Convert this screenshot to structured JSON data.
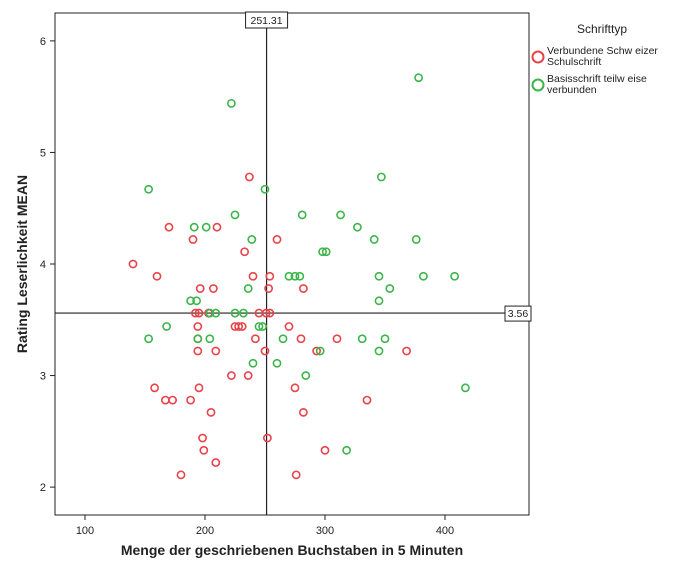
{
  "chart_data": {
    "type": "scatter",
    "xlabel": "Menge der geschriebenen Buchstaben in 5 Minuten",
    "ylabel": "Rating Leserlichkeit MEAN",
    "xlim": [
      75,
      470
    ],
    "ylim": [
      1.75,
      6.25
    ],
    "xticks": [
      100,
      200,
      300,
      400
    ],
    "yticks": [
      2,
      3,
      4,
      5,
      6
    ],
    "grid": false,
    "legend": {
      "title": "Schrifttyp",
      "placement": "right",
      "entries": [
        {
          "lines": [
            "Verbundene Schw eizer",
            "Schulschrift"
          ],
          "color": "#e8434a"
        },
        {
          "lines": [
            "Basisschrift teilw eise",
            "verbunden"
          ],
          "color": "#3cb54a"
        }
      ]
    },
    "reference_lines": {
      "x": {
        "value": 251.31,
        "label": "251.31"
      },
      "y": {
        "value": 3.56,
        "label": "3.56"
      }
    },
    "series": [
      {
        "name": "Verbundene Schw eizer Schulschrift",
        "color": "#e8434a",
        "points": [
          [
            140,
            4.0
          ],
          [
            160,
            3.89
          ],
          [
            158,
            2.89
          ],
          [
            167,
            2.78
          ],
          [
            173,
            2.78
          ],
          [
            170,
            4.33
          ],
          [
            180,
            2.11
          ],
          [
            188,
            2.78
          ],
          [
            190,
            4.22
          ],
          [
            192,
            3.56
          ],
          [
            194,
            3.44
          ],
          [
            194,
            3.33
          ],
          [
            194,
            3.22
          ],
          [
            195,
            3.56
          ],
          [
            195,
            2.89
          ],
          [
            196,
            3.78
          ],
          [
            198,
            2.44
          ],
          [
            199,
            2.33
          ],
          [
            203,
            3.56
          ],
          [
            205,
            2.67
          ],
          [
            207,
            3.78
          ],
          [
            209,
            3.22
          ],
          [
            209,
            2.22
          ],
          [
            210,
            4.33
          ],
          [
            222,
            3.0
          ],
          [
            225,
            3.44
          ],
          [
            228,
            3.44
          ],
          [
            231,
            3.44
          ],
          [
            233,
            4.11
          ],
          [
            236,
            3.0
          ],
          [
            237,
            4.78
          ],
          [
            240,
            3.89
          ],
          [
            242,
            3.33
          ],
          [
            245,
            3.56
          ],
          [
            250,
            3.22
          ],
          [
            251,
            3.56
          ],
          [
            252,
            2.44
          ],
          [
            253,
            3.78
          ],
          [
            254,
            3.89
          ],
          [
            254,
            3.56
          ],
          [
            260,
            4.22
          ],
          [
            270,
            3.44
          ],
          [
            275,
            2.89
          ],
          [
            276,
            2.11
          ],
          [
            280,
            3.33
          ],
          [
            282,
            3.78
          ],
          [
            282,
            2.67
          ],
          [
            293,
            3.22
          ],
          [
            300,
            2.33
          ],
          [
            310,
            3.33
          ],
          [
            335,
            2.78
          ],
          [
            368,
            3.22
          ]
        ]
      },
      {
        "name": "Basisschrift teilw eise verbunden",
        "color": "#3cb54a",
        "points": [
          [
            153,
            4.67
          ],
          [
            153,
            3.33
          ],
          [
            168,
            3.44
          ],
          [
            188,
            3.67
          ],
          [
            191,
            4.33
          ],
          [
            193,
            3.67
          ],
          [
            194,
            3.33
          ],
          [
            201,
            4.33
          ],
          [
            204,
            3.56
          ],
          [
            204,
            3.33
          ],
          [
            209,
            3.56
          ],
          [
            222,
            5.44
          ],
          [
            225,
            4.44
          ],
          [
            225,
            3.56
          ],
          [
            232,
            3.56
          ],
          [
            236,
            3.78
          ],
          [
            239,
            4.22
          ],
          [
            240,
            3.11
          ],
          [
            245,
            3.44
          ],
          [
            248,
            3.44
          ],
          [
            250,
            4.67
          ],
          [
            260,
            3.11
          ],
          [
            265,
            3.33
          ],
          [
            270,
            3.89
          ],
          [
            275,
            3.89
          ],
          [
            279,
            3.89
          ],
          [
            281,
            4.44
          ],
          [
            284,
            3.0
          ],
          [
            296,
            3.22
          ],
          [
            298,
            4.11
          ],
          [
            301,
            4.11
          ],
          [
            313,
            4.44
          ],
          [
            318,
            2.33
          ],
          [
            327,
            4.33
          ],
          [
            331,
            3.33
          ],
          [
            341,
            4.22
          ],
          [
            345,
            3.89
          ],
          [
            345,
            3.67
          ],
          [
            345,
            3.22
          ],
          [
            347,
            4.78
          ],
          [
            350,
            3.33
          ],
          [
            354,
            3.78
          ],
          [
            376,
            4.22
          ],
          [
            378,
            5.67
          ],
          [
            382,
            3.89
          ],
          [
            408,
            3.89
          ],
          [
            417,
            2.89
          ]
        ]
      }
    ]
  }
}
